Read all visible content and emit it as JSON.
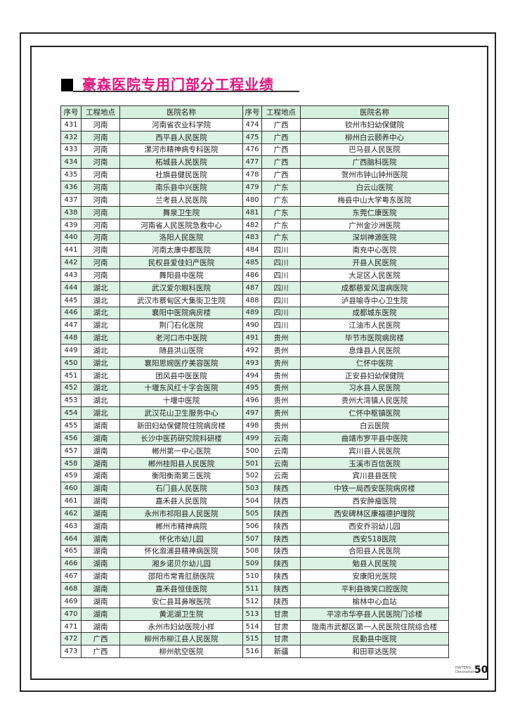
{
  "title": "豪森医院专用门部分工程业绩",
  "headers": [
    "序号",
    "工程地点",
    "医院名称",
    "序号",
    "工程地点",
    "医院名称"
  ],
  "colors": {
    "title": "#e2147e",
    "row_alt": "#dcf2e4"
  },
  "rows": [
    [
      [
        "431",
        "河南",
        "河南省农业科学院"
      ],
      [
        "474",
        "广西",
        "钦州市妇幼保健院"
      ]
    ],
    [
      [
        "432",
        "河南",
        "西平县人民医院"
      ],
      [
        "475",
        "广西",
        "柳州白云颐养中心"
      ]
    ],
    [
      [
        "433",
        "河南",
        "漯河市精神病专科医院"
      ],
      [
        "476",
        "广西",
        "巴马县人民医院"
      ]
    ],
    [
      [
        "434",
        "河南",
        "柘城县人民医院"
      ],
      [
        "477",
        "广西",
        "广西脑科医院"
      ]
    ],
    [
      [
        "435",
        "河南",
        "社旗县健民医院"
      ],
      [
        "478",
        "广西",
        "贺州市钟山钟州医院"
      ]
    ],
    [
      [
        "436",
        "河南",
        "南乐县中兴医院"
      ],
      [
        "479",
        "广东",
        "白云山医院"
      ]
    ],
    [
      [
        "437",
        "河南",
        "兰考县人民医院"
      ],
      [
        "480",
        "广东",
        "梅县中山大学粤东医院"
      ]
    ],
    [
      [
        "438",
        "河南",
        "舞泉卫生院"
      ],
      [
        "481",
        "广东",
        "东莞仁康医院"
      ]
    ],
    [
      [
        "439",
        "河南",
        "河南省人民医院急救中心"
      ],
      [
        "482",
        "广东",
        "广州金沙洲医院"
      ]
    ],
    [
      [
        "440",
        "河南",
        "洛阳人民医院"
      ],
      [
        "483",
        "广东",
        "深圳神源医院"
      ]
    ],
    [
      [
        "441",
        "河南",
        "河南太康中都医院"
      ],
      [
        "484",
        "四川",
        "南充中心医院"
      ]
    ],
    [
      [
        "442",
        "河南",
        "民权县爱佳妇产医院"
      ],
      [
        "485",
        "四川",
        "开县人民医院"
      ]
    ],
    [
      [
        "443",
        "河南",
        "舞阳县中医院"
      ],
      [
        "486",
        "四川",
        "大足区人民医院"
      ]
    ],
    [
      [
        "444",
        "湖北",
        "武汉爱尔眼科医院"
      ],
      [
        "487",
        "四川",
        "成都慈爱风湿病医院"
      ]
    ],
    [
      [
        "445",
        "湖北",
        "武汉市蔡甸区大集街卫生院"
      ],
      [
        "488",
        "四川",
        "泸县喻寺中心卫生院"
      ]
    ],
    [
      [
        "446",
        "湖北",
        "襄阳中医院病房楼"
      ],
      [
        "489",
        "四川",
        "成都城东医院"
      ]
    ],
    [
      [
        "447",
        "湖北",
        "荆门石化医院"
      ],
      [
        "490",
        "四川",
        "江油市人民医院"
      ]
    ],
    [
      [
        "448",
        "湖北",
        "老河口市中医院"
      ],
      [
        "491",
        "贵州",
        "毕节市医院病房楼"
      ]
    ],
    [
      [
        "449",
        "湖北",
        "随县洪山医院"
      ],
      [
        "492",
        "贵州",
        "息烽县人民医院"
      ]
    ],
    [
      [
        "450",
        "湖北",
        "襄阳思婉医疗美容医院"
      ],
      [
        "493",
        "贵州",
        "仁怀中医院"
      ]
    ],
    [
      [
        "451",
        "湖北",
        "团风县中医医院"
      ],
      [
        "494",
        "贵州",
        "正安县妇幼保健院"
      ]
    ],
    [
      [
        "452",
        "湖北",
        "十堰东风红十字会医院"
      ],
      [
        "495",
        "贵州",
        "习水县人民医院"
      ]
    ],
    [
      [
        "453",
        "湖北",
        "十堰中医院"
      ],
      [
        "496",
        "贵州",
        "贵州大湾镇人民医院"
      ]
    ],
    [
      [
        "454",
        "湖北",
        "武汉花山卫生服务中心"
      ],
      [
        "497",
        "贵州",
        "仁怀中枢镇医院"
      ]
    ],
    [
      [
        "455",
        "湖南",
        "新田妇幼保健院住院病房楼"
      ],
      [
        "498",
        "贵州",
        "白云医院"
      ]
    ],
    [
      [
        "456",
        "湖南",
        "长沙中医药研究院科研楼"
      ],
      [
        "499",
        "云南",
        "曲靖市罗平县中医院"
      ]
    ],
    [
      [
        "457",
        "湖南",
        "郴州第一中心医院"
      ],
      [
        "500",
        "云南",
        "宾川县人民医院"
      ]
    ],
    [
      [
        "458",
        "湖南",
        "郴州桂阳县人民医院"
      ],
      [
        "501",
        "云南",
        "玉溪市百信医院"
      ]
    ],
    [
      [
        "459",
        "湖南",
        "衡阳衡南第三医院"
      ],
      [
        "502",
        "云南",
        "宾川县县医院"
      ]
    ],
    [
      [
        "460",
        "湖南",
        "石门县人民医院"
      ],
      [
        "503",
        "陕西",
        "中铁一局西安医院病房楼"
      ]
    ],
    [
      [
        "461",
        "湖南",
        "嘉禾县人民医院"
      ],
      [
        "504",
        "陕西",
        "西安肿瘤医院"
      ]
    ],
    [
      [
        "462",
        "湖南",
        "永州市祁阳县人民医院"
      ],
      [
        "505",
        "陕西",
        "西安碑林区康福德护理院"
      ]
    ],
    [
      [
        "463",
        "湖南",
        "郴州市精神病院"
      ],
      [
        "506",
        "陕西",
        "西安乔羽幼儿园"
      ]
    ],
    [
      [
        "464",
        "湖南",
        "怀化市幼儿园"
      ],
      [
        "507",
        "陕西",
        "西安518医院"
      ]
    ],
    [
      [
        "465",
        "湖南",
        "怀化溆浦县精神病医院"
      ],
      [
        "508",
        "陕西",
        "合阳县人民医院"
      ]
    ],
    [
      [
        "466",
        "湖南",
        "湘乡诺贝尔幼儿园"
      ],
      [
        "509",
        "陕西",
        "勉县人民医院"
      ]
    ],
    [
      [
        "467",
        "湖南",
        "邵阳市常青肛肠医院"
      ],
      [
        "510",
        "陕西",
        "安康阳光医院"
      ]
    ],
    [
      [
        "468",
        "湖南",
        "嘉禾县恒佳医院"
      ],
      [
        "511",
        "陕西",
        "平利县微笑口腔医院"
      ]
    ],
    [
      [
        "469",
        "湖南",
        "安仁县耳鼻喉医院"
      ],
      [
        "512",
        "陕西",
        "榆林中心血站"
      ]
    ],
    [
      [
        "470",
        "湖南",
        "黄泥湖卫生院"
      ],
      [
        "513",
        "甘肃",
        "平凉市华亭县人民医院门诊楼"
      ]
    ],
    [
      [
        "471",
        "湖南",
        "永州市妇幼医院小样"
      ],
      [
        "514",
        "甘肃",
        "陇南市武都区第一人民医院住院综合楼"
      ]
    ],
    [
      [
        "472",
        "广西",
        "柳州市柳江县人民医院"
      ],
      [
        "515",
        "甘肃",
        "民勤县中医院"
      ]
    ],
    [
      [
        "473",
        "广西",
        "柳州航空医院"
      ],
      [
        "516",
        "新疆",
        "和田菲达医院"
      ]
    ]
  ],
  "footer": {
    "brand_line1": "HAITENG",
    "brand_line2": "Decoration",
    "page_number": "50"
  }
}
